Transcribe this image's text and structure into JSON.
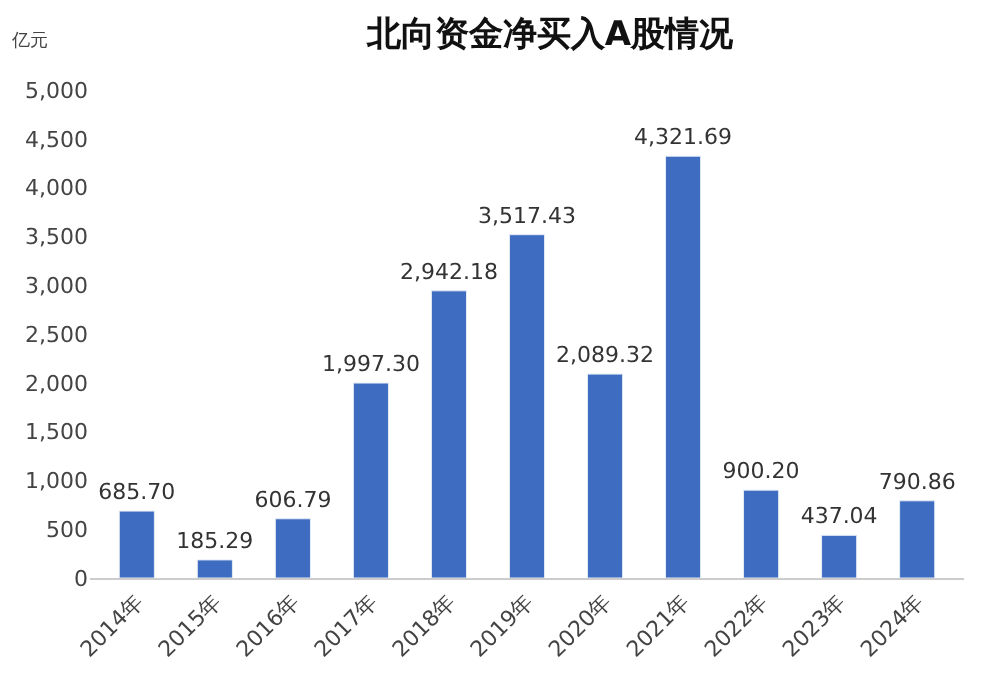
{
  "chart_data": {
    "type": "bar",
    "title": "北向资金净买入A股情况",
    "ylabel": "亿元",
    "categories": [
      "2014年",
      "2015年",
      "2016年",
      "2017年",
      "2018年",
      "2019年",
      "2020年",
      "2021年",
      "2022年",
      "2023年",
      "2024年"
    ],
    "values": [
      685.7,
      185.29,
      606.79,
      1997.3,
      2942.18,
      3517.43,
      2089.32,
      4321.69,
      900.2,
      437.04,
      790.86
    ],
    "value_labels": [
      "685.70",
      "185.29",
      "606.79",
      "1,997.30",
      "2,942.18",
      "3,517.43",
      "2,089.32",
      "4,321.69",
      "900.20",
      "437.04",
      "790.86"
    ],
    "color": "#3d6cc0",
    "ylim": [
      0,
      5000
    ],
    "yticks": [
      {
        "value": 0,
        "label": "0"
      },
      {
        "value": 500,
        "label": "500"
      },
      {
        "value": 1000,
        "label": "1,000"
      },
      {
        "value": 1500,
        "label": "1,500"
      },
      {
        "value": 2000,
        "label": "2,000"
      },
      {
        "value": 2500,
        "label": "2,500"
      },
      {
        "value": 3000,
        "label": "3,000"
      },
      {
        "value": 3500,
        "label": "3,500"
      },
      {
        "value": 4000,
        "label": "4,000"
      },
      {
        "value": 4500,
        "label": "4,500"
      },
      {
        "value": 5000,
        "label": "5,000"
      }
    ],
    "legend": false
  }
}
